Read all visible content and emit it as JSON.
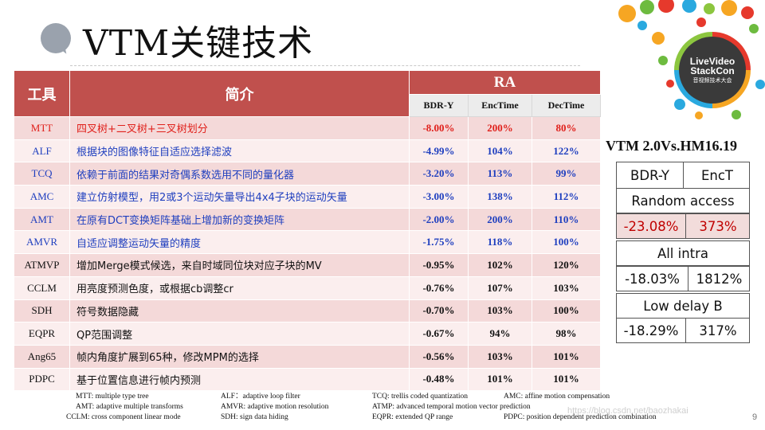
{
  "title": "VTM关键技术",
  "logo": {
    "line1": "LiveVideo",
    "line2": "StackCon",
    "line3": "音视频技术大会"
  },
  "table": {
    "header_tool": "工具",
    "header_desc": "简介",
    "header_group": "RA",
    "subheaders": [
      "BDR-Y",
      "EncTime",
      "DecTime"
    ],
    "rows": [
      {
        "tool": "MTT",
        "desc": "四叉树+二叉树+三叉树划分",
        "bdr": "-8.00%",
        "enc": "200%",
        "dec": "80%"
      },
      {
        "tool": "ALF",
        "desc": "根据块的图像特征自适应选择滤波",
        "bdr": "-4.99%",
        "enc": "104%",
        "dec": "122%"
      },
      {
        "tool": "TCQ",
        "desc": "依赖于前面的结果对奇偶系数选用不同的量化器",
        "bdr": "-3.20%",
        "enc": "113%",
        "dec": "99%"
      },
      {
        "tool": "AMC",
        "desc": "建立仿射模型，用2或3个运动矢量导出4x4子块的运动矢量",
        "bdr": "-3.00%",
        "enc": "138%",
        "dec": "112%"
      },
      {
        "tool": "AMT",
        "desc": "在原有DCT变换矩阵基础上增加新的变换矩阵",
        "bdr": "-2.00%",
        "enc": "200%",
        "dec": "110%"
      },
      {
        "tool": "AMVR",
        "desc": "自适应调整运动矢量的精度",
        "bdr": "-1.75%",
        "enc": "118%",
        "dec": "100%"
      },
      {
        "tool": "ATMVP",
        "desc": "增加Merge模式候选，来自时域同位块对应子块的MV",
        "bdr": "-0.95%",
        "enc": "102%",
        "dec": "120%"
      },
      {
        "tool": "CCLM",
        "desc": "用亮度预测色度，或根据cb调整cr",
        "bdr": "-0.76%",
        "enc": "107%",
        "dec": "103%"
      },
      {
        "tool": "SDH",
        "desc": "符号数据隐藏",
        "bdr": "-0.70%",
        "enc": "103%",
        "dec": "100%"
      },
      {
        "tool": "EQPR",
        "desc": "QP范围调整",
        "bdr": "-0.67%",
        "enc": "94%",
        "dec": "98%"
      },
      {
        "tool": "Ang65",
        "desc": "帧内角度扩展到65种，修改MPM的选择",
        "bdr": "-0.56%",
        "enc": "103%",
        "dec": "101%"
      },
      {
        "tool": "PDPC",
        "desc": "基于位置信息进行帧内预测",
        "bdr": "-0.48%",
        "enc": "101%",
        "dec": "101%"
      }
    ]
  },
  "legend": [
    [
      "MTT: multiple type tree",
      "ALF：adaptive loop filter",
      "TCQ: trellis coded quantization",
      "AMC: affine motion compensation"
    ],
    [
      "AMT: adaptive multiple transforms",
      "AMVR: adaptive motion resolution",
      "ATMP: advanced temporal motion vector prediction",
      ""
    ],
    [
      "CCLM: cross component linear mode",
      "SDH: sign data hiding",
      "EQPR: extended QP range",
      "PDPC: position dependent prediction combination"
    ]
  ],
  "comparison": {
    "caption": "VTM 2.0Vs.HM16.19",
    "col1": "BDR-Y",
    "col2": "EncT",
    "groups": [
      {
        "label": "Random access",
        "bdr": "-23.08%",
        "enct": "373%"
      },
      {
        "label": "All intra",
        "bdr": "-18.03%",
        "enct": "1812%"
      },
      {
        "label": "Low delay B",
        "bdr": "-18.29%",
        "enct": "317%"
      }
    ]
  },
  "watermark": "https://blog.csdn.net/baozhakai",
  "page_number": "9",
  "colors": {
    "header_red": "#c0504d",
    "red_text": "#e0201b",
    "blue_text": "#1f3fbf",
    "row_odd": "#f4d9d9",
    "row_even": "#fbeeee"
  }
}
